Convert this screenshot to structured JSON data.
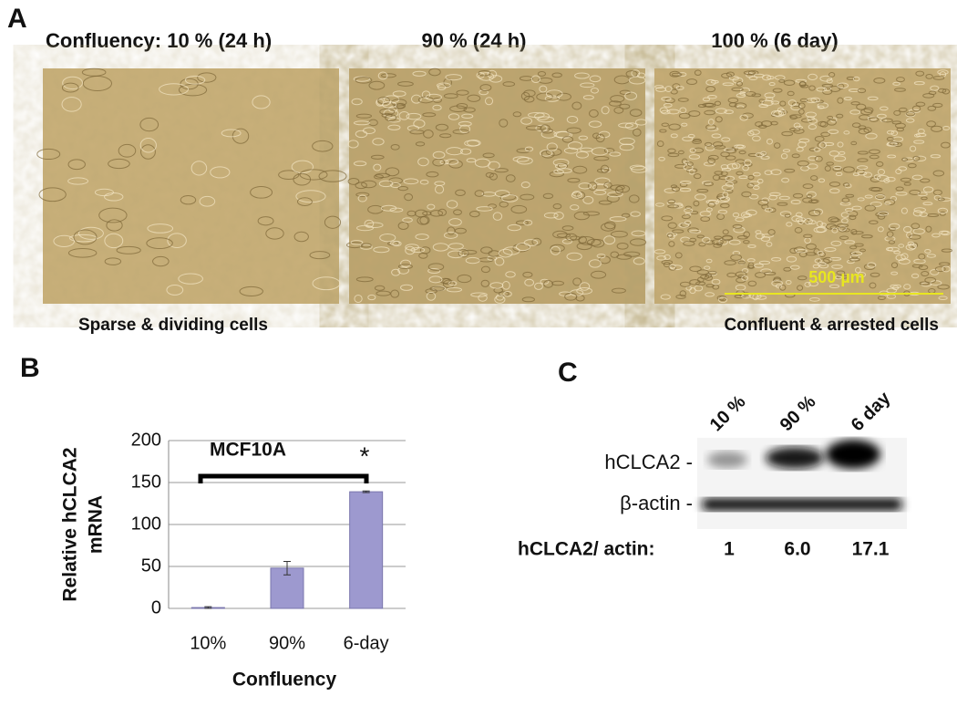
{
  "panel_a": {
    "label": "A",
    "headers": [
      "Confluency: 10 % (24 h)",
      "90 % (24 h)",
      "100 % (6 day)"
    ],
    "captions": [
      "Sparse & dividing cells",
      "Confluent & arrested cells"
    ],
    "scale_bar": "500 µm"
  },
  "chart_data": {
    "type": "bar",
    "panel_label": "B",
    "title": "MCF10A",
    "annotation": "*",
    "ylabel": [
      "Relative hCLCA2",
      "mRNA"
    ],
    "xlabel": "Confluency",
    "categories": [
      "10%",
      "90%",
      "6-day"
    ],
    "values": [
      1,
      48,
      139
    ],
    "errors": [
      1,
      8,
      1
    ],
    "color": "#9d99cf",
    "ylim": [
      0,
      200
    ],
    "yticks": [
      0,
      50,
      100,
      150,
      200
    ],
    "grid": true
  },
  "panel_c": {
    "label": "C",
    "lanes": [
      "10 %",
      "90 %",
      "6 day"
    ],
    "rows": [
      "hCLCA2 -",
      "β-actin -"
    ],
    "ratio_label": "hCLCA2/ actin:",
    "ratios": [
      "1",
      "6.0",
      "17.1"
    ]
  }
}
